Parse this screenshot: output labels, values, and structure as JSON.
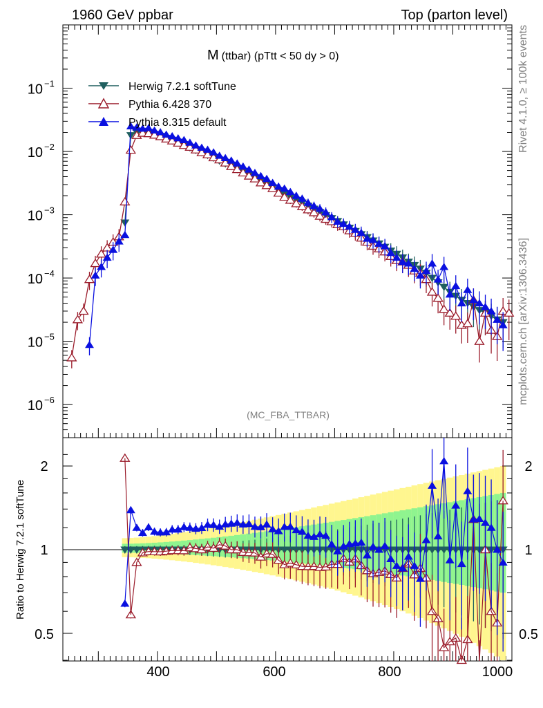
{
  "header": {
    "left": "1960 GeV ppbar",
    "right": "Top (parton level)"
  },
  "side": {
    "right_top": "Rivet 4.1.0, ≥ 100k events",
    "right_bottom": "mcplots.cern.ch [arXiv:1306.3436]"
  },
  "main_plot": {
    "title_main": "M",
    "title_sub": "(ttbar) (pTtt < 50 dy > 0)",
    "watermark": "(MC_FBA_TTBAR)",
    "y_ticks": [
      {
        "base": "10",
        "exp": "−1",
        "value": 0.1
      },
      {
        "base": "10",
        "exp": "−2",
        "value": 0.01
      },
      {
        "base": "10",
        "exp": "−3",
        "value": 0.001
      },
      {
        "base": "10",
        "exp": "−4",
        "value": 0.0001
      },
      {
        "base": "10",
        "exp": "−5",
        "value": 1e-05
      },
      {
        "base": "10",
        "exp": "−6",
        "value": 1e-06
      }
    ]
  },
  "ratio_plot": {
    "ylabel": "Ratio to Herwig 7.2.1 softTune",
    "y_ticks": [
      "2",
      "1",
      "0.5"
    ]
  },
  "x_axis": {
    "ticks": [
      "400",
      "600",
      "800",
      "1000"
    ]
  },
  "legend": [
    {
      "label": "Herwig 7.2.1 softTune",
      "color": "#1f5f5f",
      "marker": "triangle-down-filled"
    },
    {
      "label": "Pythia 6.428 370",
      "color": "#9a1b2a",
      "marker": "triangle-up-open"
    },
    {
      "label": "Pythia 8.315 default",
      "color": "#0a10e0",
      "marker": "triangle-up-filled"
    }
  ],
  "chart_data": {
    "type": "line",
    "title": "M (ttbar) (pTtt < 50 dy > 0)",
    "xlabel": "",
    "ylabel": "",
    "xlim": [
      240,
      1000
    ],
    "ylim": [
      3e-07,
      1.0
    ],
    "yscale": "log",
    "ratio_ylim": [
      0.4,
      2.4
    ],
    "series": [
      {
        "name": "Herwig 7.2.1 softTune",
        "x": [
          345,
          355,
          365,
          375,
          385,
          395,
          405,
          415,
          425,
          435,
          445,
          455,
          465,
          475,
          485,
          495,
          505,
          515,
          525,
          535,
          545,
          555,
          565,
          575,
          585,
          595,
          605,
          615,
          625,
          635,
          645,
          655,
          665,
          675,
          685,
          695,
          705,
          715,
          725,
          735,
          745,
          755,
          765,
          775,
          785,
          795,
          805,
          815,
          825,
          835,
          845,
          855,
          865,
          875,
          885,
          895,
          905,
          915,
          925,
          935,
          945,
          955,
          965,
          975,
          985
        ],
        "y": [
          0.00075,
          0.018,
          0.02,
          0.02,
          0.0195,
          0.0185,
          0.0175,
          0.016,
          0.0148,
          0.0137,
          0.0126,
          0.0115,
          0.0105,
          0.0096,
          0.0087,
          0.0079,
          0.0071,
          0.0064,
          0.0058,
          0.0052,
          0.0047,
          0.0042,
          0.0038,
          0.0034,
          0.003,
          0.0027,
          0.0024,
          0.00215,
          0.0019,
          0.0017,
          0.00155,
          0.00138,
          0.00124,
          0.0011,
          0.00098,
          0.00088,
          0.00079,
          0.0007,
          0.00062,
          0.00055,
          0.00049,
          0.00044,
          0.00039,
          0.00035,
          0.00031,
          0.00027,
          0.00024,
          0.00021,
          0.00018,
          0.00016,
          0.00014,
          0.00012,
          0.0001,
          8.5e-05,
          7.2e-05,
          6e-05,
          5.2e-05,
          4.5e-05,
          4e-05,
          3.5e-05,
          3.1e-05,
          2.8e-05,
          2.5e-05,
          2.2e-05,
          2e-05
        ]
      },
      {
        "name": "Pythia 6.428 370",
        "x": [
          255,
          265,
          275,
          285,
          295,
          305,
          315,
          325,
          335,
          345,
          355,
          365,
          375,
          385,
          395,
          405,
          415,
          425,
          435,
          445,
          455,
          465,
          475,
          485,
          495,
          505,
          515,
          525,
          535,
          545,
          555,
          565,
          575,
          585,
          595,
          605,
          615,
          625,
          635,
          645,
          655,
          665,
          675,
          685,
          695,
          705,
          715,
          725,
          735,
          745,
          755,
          765,
          775,
          785,
          795,
          805,
          815,
          825,
          835,
          845,
          855,
          865,
          875,
          885,
          895,
          905,
          915,
          925,
          935,
          945,
          955,
          965,
          975,
          985,
          995
        ],
        "y": [
          5.5e-06,
          2.2e-05,
          3e-05,
          9.5e-05,
          0.00017,
          0.00024,
          0.0003,
          0.00037,
          0.00045,
          0.0016,
          0.0105,
          0.018,
          0.0195,
          0.0192,
          0.0182,
          0.0172,
          0.0158,
          0.0147,
          0.0136,
          0.0125,
          0.0117,
          0.0106,
          0.0096,
          0.0089,
          0.008,
          0.0074,
          0.0066,
          0.0058,
          0.0052,
          0.0046,
          0.0041,
          0.0037,
          0.0032,
          0.0029,
          0.0026,
          0.0022,
          0.0019,
          0.0017,
          0.0015,
          0.00135,
          0.0012,
          0.00108,
          0.00095,
          0.00085,
          0.00078,
          0.0007,
          0.00065,
          0.00056,
          0.00051,
          0.00043,
          0.00037,
          0.00032,
          0.00029,
          0.00026,
          0.00022,
          0.00019,
          0.00018,
          0.00016,
          0.00013,
          0.00012,
          9.5e-05,
          6e-05,
          4.8e-05,
          3.2e-05,
          2.8e-05,
          2.5e-05,
          1.8e-05,
          1.9e-05,
          4.5e-05,
          1e-05,
          2.8e-05,
          1.5e-05,
          1.2e-05,
          3e-05,
          2.8e-05
        ]
      },
      {
        "name": "Pythia 8.315 default",
        "x": [
          285,
          295,
          305,
          315,
          325,
          335,
          345,
          355,
          365,
          375,
          385,
          395,
          405,
          415,
          425,
          435,
          445,
          455,
          465,
          475,
          485,
          495,
          505,
          515,
          525,
          535,
          545,
          555,
          565,
          575,
          585,
          595,
          605,
          615,
          625,
          635,
          645,
          655,
          665,
          675,
          685,
          695,
          705,
          715,
          725,
          735,
          745,
          755,
          765,
          775,
          785,
          795,
          805,
          815,
          825,
          835,
          845,
          855,
          865,
          875,
          885,
          895,
          905,
          915,
          925,
          935,
          945,
          955,
          965,
          975,
          985
        ],
        "y": [
          8.8e-06,
          0.00011,
          0.00015,
          0.00021,
          0.00028,
          0.00038,
          0.00048,
          0.025,
          0.024,
          0.023,
          0.0235,
          0.0215,
          0.0202,
          0.0185,
          0.0175,
          0.0162,
          0.0152,
          0.0138,
          0.0125,
          0.0115,
          0.0107,
          0.0097,
          0.0086,
          0.0079,
          0.0072,
          0.0065,
          0.0058,
          0.0052,
          0.0046,
          0.0041,
          0.0037,
          0.0032,
          0.0028,
          0.0026,
          0.0023,
          0.002,
          0.0018,
          0.00155,
          0.00138,
          0.00125,
          0.0011,
          0.00092,
          0.00078,
          0.00072,
          0.00065,
          0.00058,
          0.00052,
          0.00042,
          0.0004,
          0.00035,
          0.00032,
          0.00025,
          0.00021,
          0.00018,
          0.00017,
          0.00014,
          0.00011,
          0.00013,
          0.00017,
          9.5e-05,
          0.00015,
          5.5e-05,
          7.5e-05,
          4e-05,
          6.5e-05,
          4.5e-05,
          4e-05,
          3.5e-05,
          3e-05,
          2.2e-05,
          1.8e-05
        ]
      }
    ]
  }
}
